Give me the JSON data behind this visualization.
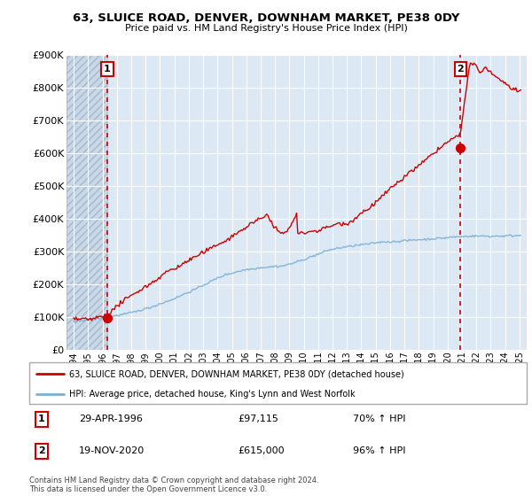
{
  "title": "63, SLUICE ROAD, DENVER, DOWNHAM MARKET, PE38 0DY",
  "subtitle": "Price paid vs. HM Land Registry's House Price Index (HPI)",
  "ylim": [
    0,
    900000
  ],
  "yticks": [
    0,
    100000,
    200000,
    300000,
    400000,
    500000,
    600000,
    700000,
    800000,
    900000
  ],
  "ytick_labels": [
    "£0",
    "£100K",
    "£200K",
    "£300K",
    "£400K",
    "£500K",
    "£600K",
    "£700K",
    "£800K",
    "£900K"
  ],
  "xlim_start": 1993.5,
  "xlim_end": 2025.5,
  "xticks": [
    1994,
    1995,
    1996,
    1997,
    1998,
    1999,
    2000,
    2001,
    2002,
    2003,
    2004,
    2005,
    2006,
    2007,
    2008,
    2009,
    2010,
    2011,
    2012,
    2013,
    2014,
    2015,
    2016,
    2017,
    2018,
    2019,
    2020,
    2021,
    2022,
    2023,
    2024,
    2025
  ],
  "hpi_line_color": "#7BAFD4",
  "property_line_color": "#CC0000",
  "point1_x": 1996.33,
  "point1_y": 97115,
  "point2_x": 2020.89,
  "point2_y": 615000,
  "legend_property": "63, SLUICE ROAD, DENVER, DOWNHAM MARKET, PE38 0DY (detached house)",
  "legend_hpi": "HPI: Average price, detached house, King's Lynn and West Norfolk",
  "point1_date": "29-APR-1996",
  "point1_price": "£97,115",
  "point1_hpi": "70% ↑ HPI",
  "point2_date": "19-NOV-2020",
  "point2_price": "£615,000",
  "point2_hpi": "96% ↑ HPI",
  "footer": "Contains HM Land Registry data © Crown copyright and database right 2024.\nThis data is licensed under the Open Government Licence v3.0.",
  "plot_bg_color": "#DCE9F5",
  "grid_color": "#FFFFFF"
}
